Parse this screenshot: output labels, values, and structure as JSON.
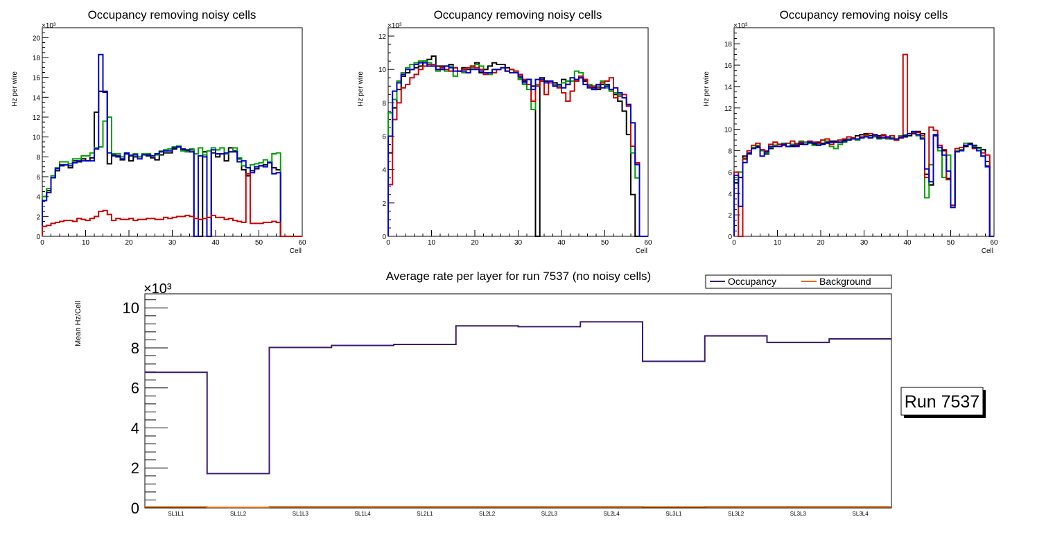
{
  "chart_data": [
    {
      "type": "step",
      "title": "Occupancy removing noisy cells",
      "xlabel": "Cell",
      "ylabel": "Hz per wire",
      "yexp": "×10³",
      "xlim": [
        0,
        60
      ],
      "ylim": [
        0,
        21
      ],
      "xticks": [
        0,
        10,
        20,
        30,
        40,
        50,
        60
      ],
      "yticks": [
        0,
        2,
        4,
        6,
        8,
        10,
        12,
        14,
        16,
        18,
        20
      ],
      "series": [
        {
          "name": "black",
          "color": "#000000",
          "values": [
            4.0,
            4.6,
            5.9,
            6.6,
            7.1,
            7.2,
            6.9,
            7.6,
            7.5,
            7.8,
            7.6,
            7.9,
            12.5,
            14.6,
            14.6,
            7.3,
            8.2,
            8.0,
            7.7,
            8.3,
            7.6,
            8.0,
            8.0,
            8.2,
            8.1,
            7.9,
            7.7,
            8.2,
            8.4,
            8.4,
            8.8,
            9.0,
            8.7,
            8.6,
            8.7,
            0,
            0,
            8.5,
            0,
            8.4,
            8.0,
            8.3,
            7.6,
            8.9,
            8.6,
            7.8,
            6.7,
            6.1,
            6.6,
            6.8,
            7.1,
            7.2,
            7.5,
            6.9,
            6.7,
            0,
            0,
            0,
            0,
            0
          ]
        },
        {
          "name": "green",
          "color": "#00a000",
          "values": [
            4.0,
            4.8,
            6.1,
            6.9,
            7.5,
            7.5,
            7.3,
            7.8,
            7.8,
            8.1,
            8.1,
            8.4,
            8.9,
            9.0,
            11.6,
            12.0,
            8.3,
            8.3,
            8.0,
            8.4,
            8.2,
            8.3,
            8.0,
            8.3,
            8.3,
            8.1,
            8.2,
            8.6,
            8.7,
            8.8,
            9.0,
            9.1,
            8.6,
            8.5,
            8.8,
            8.3,
            8.9,
            8.2,
            8.6,
            8.9,
            8.7,
            8.9,
            8.3,
            8.5,
            8.9,
            7.9,
            7.1,
            6.9,
            7.2,
            7.3,
            7.4,
            7.7,
            7.5,
            8.3,
            8.4,
            0,
            0,
            0,
            0,
            0
          ]
        },
        {
          "name": "blue",
          "color": "#0000c8",
          "values": [
            3.6,
            4.4,
            5.9,
            6.8,
            7.2,
            7.2,
            7.1,
            7.4,
            7.6,
            7.6,
            7.6,
            7.6,
            8.8,
            18.3,
            14.5,
            8.4,
            8.1,
            8.1,
            7.8,
            8.4,
            8.1,
            8.2,
            7.8,
            8.2,
            8.2,
            8.1,
            8.3,
            8.5,
            8.6,
            8.6,
            8.9,
            9.0,
            8.8,
            8.7,
            8.5,
            0,
            8.1,
            8.0,
            0,
            8.7,
            8.3,
            8.3,
            8.4,
            8.5,
            8.5,
            7.5,
            7.6,
            6.9,
            6.4,
            7.0,
            7.1,
            7.0,
            7.4,
            6.3,
            6.4,
            0,
            0,
            0,
            0,
            0
          ]
        },
        {
          "name": "red",
          "color": "#c80000",
          "values": [
            1.0,
            1.1,
            1.3,
            1.4,
            1.5,
            1.6,
            1.6,
            1.5,
            1.8,
            1.7,
            1.6,
            1.8,
            2.0,
            2.5,
            2.6,
            2.2,
            1.6,
            1.8,
            1.7,
            1.7,
            1.8,
            1.6,
            1.7,
            1.7,
            1.8,
            1.8,
            1.7,
            1.7,
            1.9,
            1.8,
            1.9,
            2.0,
            2.0,
            2.1,
            2.0,
            1.8,
            1.7,
            1.8,
            1.9,
            2.1,
            1.9,
            1.9,
            1.7,
            1.8,
            1.6,
            1.5,
            1.4,
            6.3,
            1.3,
            1.3,
            1.3,
            1.4,
            1.4,
            1.5,
            1.4,
            0,
            0,
            0,
            0,
            0
          ]
        }
      ]
    },
    {
      "type": "step",
      "title": "Occupancy removing noisy cells",
      "xlabel": "Cell",
      "ylabel": "Hz per wire",
      "yexp": "×10³",
      "xlim": [
        0,
        60
      ],
      "ylim": [
        0,
        12.5
      ],
      "xticks": [
        0,
        10,
        20,
        30,
        40,
        50,
        60
      ],
      "yticks": [
        0,
        2,
        4,
        6,
        8,
        10,
        12
      ],
      "series": [
        {
          "name": "black",
          "color": "#000000",
          "values": [
            5.0,
            7.7,
            8.8,
            9.6,
            9.8,
            10.0,
            10.1,
            10.2,
            10.5,
            10.6,
            10.8,
            10.2,
            10.2,
            10.2,
            10.3,
            10.1,
            9.9,
            10.1,
            10.0,
            10.2,
            10.4,
            9.8,
            10.0,
            10.2,
            10.4,
            10.3,
            10.3,
            10.1,
            10.0,
            9.9,
            9.5,
            9.3,
            9.4,
            9.0,
            0,
            9.5,
            9.3,
            9.3,
            9.2,
            9.0,
            9.4,
            9.1,
            9.3,
            9.3,
            9.5,
            9.3,
            9.0,
            8.9,
            8.8,
            9.1,
            9.1,
            8.8,
            8.5,
            8.1,
            7.5,
            6.1,
            2.5,
            0,
            0,
            0
          ]
        },
        {
          "name": "green",
          "color": "#00a000",
          "values": [
            7.4,
            8.2,
            9.3,
            9.8,
            10.1,
            10.3,
            10.4,
            10.5,
            10.5,
            10.4,
            10.2,
            9.9,
            10.0,
            9.9,
            10.2,
            9.6,
            9.9,
            9.8,
            9.8,
            10.1,
            10.3,
            10.2,
            9.8,
            9.7,
            10.0,
            10.0,
            10.1,
            9.9,
            9.8,
            9.9,
            9.4,
            9.1,
            8.8,
            7.6,
            9.1,
            9.3,
            9.2,
            9.3,
            9.1,
            9.0,
            9.2,
            9.3,
            9.3,
            9.9,
            9.8,
            9.4,
            9.1,
            8.8,
            9.0,
            9.3,
            8.9,
            8.7,
            8.6,
            8.5,
            8.3,
            7.9,
            5.0,
            3.5,
            0,
            0
          ]
        },
        {
          "name": "red",
          "color": "#c80000",
          "values": [
            3.1,
            7.0,
            8.0,
            8.9,
            9.1,
            9.5,
            9.7,
            10.0,
            10.2,
            10.3,
            10.3,
            10.0,
            10.1,
            10.0,
            9.9,
            10.1,
            9.9,
            10.0,
            10.1,
            10.2,
            10.1,
            10.0,
            9.7,
            9.8,
            9.8,
            10.0,
            10.1,
            9.9,
            10.0,
            9.9,
            9.7,
            9.4,
            9.1,
            8.1,
            9.0,
            9.3,
            8.5,
            9.2,
            9.0,
            8.9,
            8.6,
            8.1,
            8.7,
            9.3,
            9.6,
            9.4,
            9.0,
            9.0,
            8.9,
            9.2,
            9.3,
            9.5,
            8.3,
            8.4,
            8.5,
            7.8,
            5.4,
            4.4,
            0,
            0
          ]
        },
        {
          "name": "blue",
          "color": "#0000c8",
          "values": [
            6.0,
            8.7,
            9.2,
            9.7,
            10.0,
            10.0,
            10.3,
            10.4,
            10.4,
            10.2,
            10.2,
            10.0,
            10.0,
            10.2,
            10.1,
            9.9,
            9.9,
            9.9,
            9.8,
            10.0,
            10.0,
            9.9,
            9.8,
            9.8,
            10.0,
            10.0,
            10.1,
            9.9,
            9.8,
            9.8,
            9.6,
            9.2,
            9.4,
            8.8,
            9.4,
            9.4,
            9.2,
            9.3,
            9.0,
            9.1,
            8.9,
            9.1,
            9.5,
            9.4,
            9.5,
            9.1,
            8.9,
            8.8,
            9.1,
            8.9,
            9.0,
            8.8,
            8.9,
            8.6,
            8.3,
            7.9,
            6.8,
            4.3,
            0,
            0
          ]
        }
      ]
    },
    {
      "type": "step",
      "title": "Occupancy removing noisy cells",
      "xlabel": "Cell",
      "ylabel": "Hz per wire",
      "yexp": "×10³",
      "xlim": [
        0,
        60
      ],
      "ylim": [
        0,
        19.5
      ],
      "xticks": [
        0,
        10,
        20,
        30,
        40,
        50,
        60
      ],
      "yticks": [
        0,
        2,
        4,
        6,
        8,
        10,
        12,
        14,
        16,
        18
      ],
      "series": [
        {
          "name": "black",
          "color": "#000000",
          "values": [
            5.0,
            5.5,
            7.5,
            7.8,
            8.3,
            8.4,
            8.0,
            7.7,
            8.2,
            8.5,
            8.6,
            8.5,
            8.4,
            8.4,
            8.5,
            8.6,
            8.8,
            8.7,
            8.6,
            8.8,
            8.7,
            8.8,
            8.9,
            8.9,
            8.8,
            9.0,
            9.1,
            9.1,
            9.4,
            9.5,
            9.6,
            9.4,
            9.5,
            9.4,
            9.4,
            9.3,
            9.2,
            9.1,
            9.2,
            9.3,
            9.4,
            9.6,
            9.8,
            9.6,
            5.8,
            4.8,
            9.4,
            8.3,
            8.0,
            5.4,
            2.9,
            7.9,
            8.1,
            8.4,
            8.7,
            8.5,
            8.3,
            8.1,
            7.0,
            0
          ]
        },
        {
          "name": "green",
          "color": "#00a000",
          "values": [
            5.3,
            6.0,
            7.2,
            8.0,
            8.3,
            8.5,
            8.0,
            7.8,
            8.3,
            8.5,
            8.6,
            8.7,
            8.4,
            8.6,
            8.7,
            8.9,
            8.8,
            8.7,
            8.5,
            8.6,
            8.6,
            8.9,
            8.4,
            8.2,
            8.6,
            8.8,
            9.1,
            9.2,
            9.0,
            9.3,
            9.4,
            9.2,
            9.3,
            9.1,
            9.2,
            9.1,
            9.2,
            9.0,
            9.4,
            9.5,
            9.6,
            9.7,
            9.4,
            9.2,
            3.6,
            6.7,
            9.5,
            8.0,
            5.5,
            7.6,
            2.9,
            8.0,
            8.1,
            8.7,
            8.6,
            8.4,
            8.2,
            7.5,
            6.6,
            0
          ]
        },
        {
          "name": "red",
          "color": "#c80000",
          "values": [
            6.0,
            0,
            7.3,
            8.0,
            8.5,
            8.7,
            8.1,
            8.0,
            8.6,
            8.8,
            8.6,
            8.5,
            8.7,
            8.9,
            8.6,
            8.8,
            8.6,
            8.9,
            8.8,
            8.7,
            9.0,
            9.1,
            8.6,
            8.8,
            9.0,
            9.1,
            9.3,
            9.2,
            9.1,
            9.3,
            9.5,
            9.6,
            9.4,
            9.3,
            9.5,
            9.2,
            9.4,
            9.0,
            9.3,
            17.0,
            9.6,
            9.7,
            9.7,
            9.4,
            5.5,
            10.2,
            9.9,
            8.5,
            8.1,
            5.3,
            2.9,
            8.2,
            8.3,
            8.5,
            8.6,
            8.2,
            8.0,
            7.8,
            7.6,
            0
          ]
        },
        {
          "name": "blue",
          "color": "#0000c8",
          "values": [
            5.7,
            2.8,
            6.9,
            7.7,
            8.2,
            8.3,
            7.5,
            7.9,
            8.4,
            8.4,
            8.4,
            8.6,
            8.4,
            8.5,
            8.4,
            8.7,
            8.6,
            8.8,
            8.7,
            8.5,
            8.6,
            8.7,
            8.8,
            8.8,
            8.8,
            8.9,
            9.0,
            9.1,
            9.1,
            9.2,
            9.3,
            9.2,
            9.5,
            9.2,
            9.2,
            9.3,
            9.1,
            9.1,
            9.2,
            9.4,
            9.6,
            9.8,
            9.5,
            9.1,
            6.3,
            5.1,
            9.5,
            8.3,
            7.6,
            6.1,
            2.7,
            7.9,
            8.0,
            8.5,
            8.6,
            8.3,
            8.0,
            7.5,
            6.5,
            0
          ]
        }
      ]
    },
    {
      "type": "step",
      "title": "Average rate per layer for run 7537 (no noisy cells)",
      "xlabel": "",
      "ylabel": "Mean Hz/Cell",
      "yexp": "×10³",
      "ylim": [
        0,
        10.7
      ],
      "yticks": [
        0,
        2,
        4,
        6,
        8,
        10
      ],
      "categories": [
        "SL1L1",
        "SL1L2",
        "SL1L3",
        "SL1L4",
        "SL2L1",
        "SL2L2",
        "SL2L3",
        "SL2L4",
        "SL3L1",
        "SL3L2",
        "SL3L3",
        "SL3L4"
      ],
      "series": [
        {
          "name": "Occupancy",
          "color": "#3c1a6e",
          "values": [
            6.78,
            1.72,
            8.02,
            8.12,
            8.17,
            9.1,
            9.06,
            9.3,
            7.33,
            8.6,
            8.27,
            8.45
          ]
        },
        {
          "name": "Background",
          "color": "#e06a00",
          "values": [
            0.05,
            0.03,
            0.06,
            0.06,
            0.06,
            0.06,
            0.06,
            0.06,
            0.05,
            0.06,
            0.06,
            0.06
          ]
        }
      ],
      "legend": {
        "position": "top-right",
        "entries": [
          "Occupancy",
          "Background"
        ]
      },
      "run_label": "Run 7537"
    }
  ]
}
